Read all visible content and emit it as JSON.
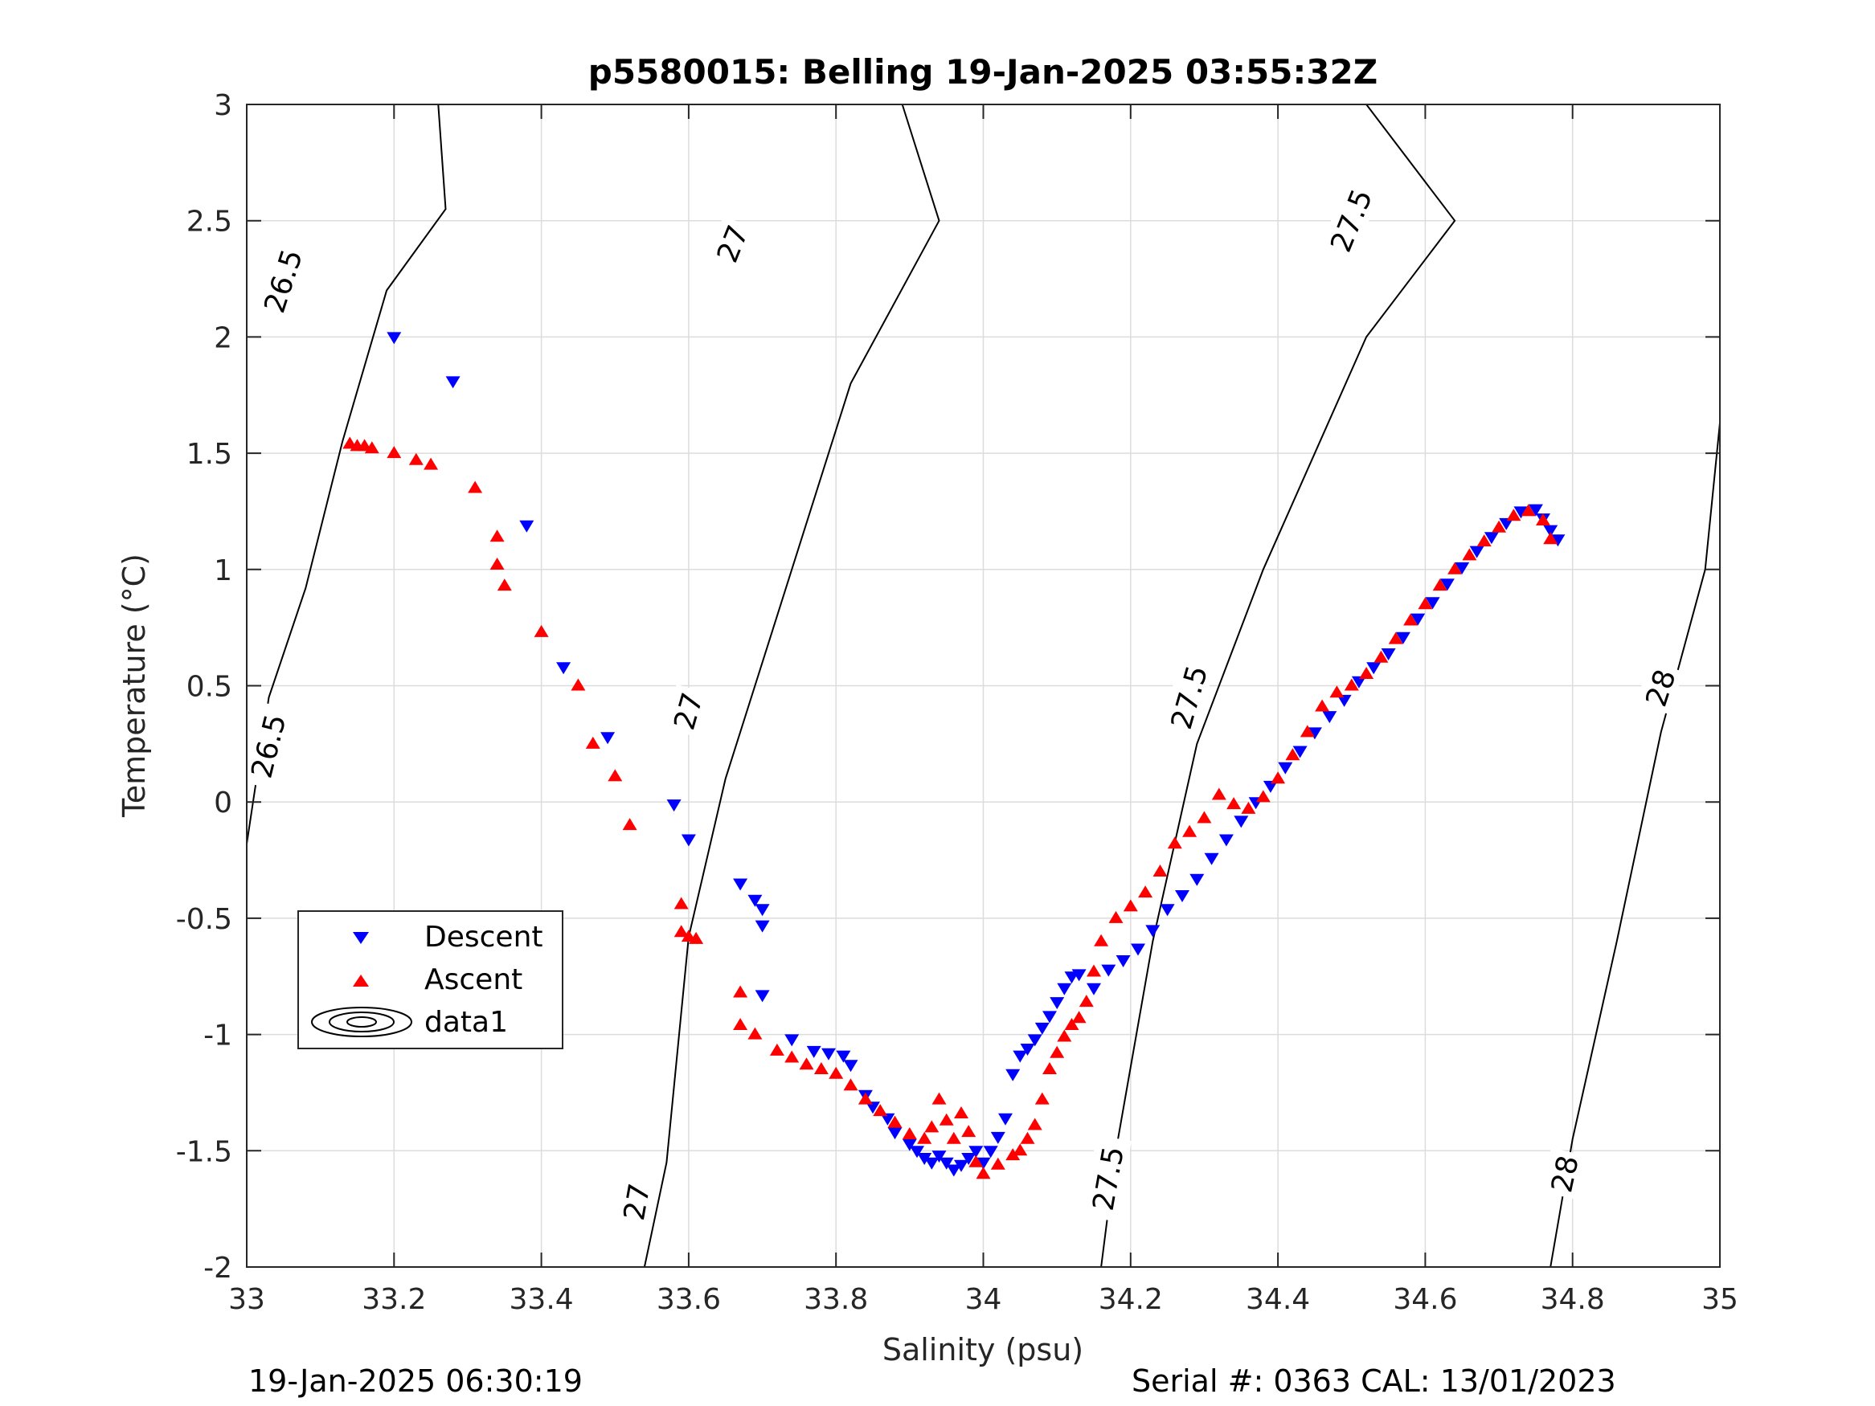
{
  "chart_data": {
    "type": "scatter",
    "title": "p5580015: Belling 19-Jan-2025 03:55:32Z",
    "xlabel": "Salinity (psu)",
    "ylabel": "Temperature (°C)",
    "xlim": [
      33,
      35
    ],
    "ylim": [
      -2,
      3
    ],
    "xticks": [
      "33",
      "33.2",
      "33.4",
      "33.6",
      "33.8",
      "34",
      "34.2",
      "34.4",
      "34.6",
      "34.8",
      "35"
    ],
    "yticks": [
      "3",
      "2.5",
      "2",
      "1.5",
      "1",
      "0.5",
      "0",
      "-0.5",
      "-1",
      "-1.5",
      "-2"
    ],
    "grid": true,
    "legend": {
      "placement": "lower-left",
      "entries": [
        "Descent",
        "Ascent",
        "data1"
      ]
    },
    "series": [
      {
        "name": "Descent",
        "marker": "triangle-down",
        "color": "#0000ff",
        "points": [
          [
            33.2,
            2.0
          ],
          [
            33.28,
            1.81
          ],
          [
            33.38,
            1.19
          ],
          [
            33.43,
            0.58
          ],
          [
            33.49,
            0.28
          ],
          [
            33.58,
            -0.01
          ],
          [
            33.6,
            -0.16
          ],
          [
            33.67,
            -0.35
          ],
          [
            33.69,
            -0.42
          ],
          [
            33.7,
            -0.46
          ],
          [
            33.7,
            -0.53
          ],
          [
            33.7,
            -0.83
          ],
          [
            33.74,
            -1.02
          ],
          [
            33.77,
            -1.07
          ],
          [
            33.79,
            -1.08
          ],
          [
            33.81,
            -1.09
          ],
          [
            33.82,
            -1.13
          ],
          [
            33.84,
            -1.26
          ],
          [
            33.85,
            -1.31
          ],
          [
            33.87,
            -1.36
          ],
          [
            33.88,
            -1.42
          ],
          [
            33.9,
            -1.47
          ],
          [
            33.91,
            -1.5
          ],
          [
            33.92,
            -1.53
          ],
          [
            33.93,
            -1.55
          ],
          [
            33.94,
            -1.52
          ],
          [
            33.95,
            -1.55
          ],
          [
            33.96,
            -1.58
          ],
          [
            33.97,
            -1.56
          ],
          [
            33.98,
            -1.53
          ],
          [
            33.99,
            -1.5
          ],
          [
            34.0,
            -1.55
          ],
          [
            34.01,
            -1.5
          ],
          [
            34.02,
            -1.44
          ],
          [
            34.03,
            -1.36
          ],
          [
            34.04,
            -1.17
          ],
          [
            34.05,
            -1.09
          ],
          [
            34.06,
            -1.06
          ],
          [
            34.07,
            -1.02
          ],
          [
            34.08,
            -0.97
          ],
          [
            34.09,
            -0.92
          ],
          [
            34.1,
            -0.86
          ],
          [
            34.11,
            -0.8
          ],
          [
            34.12,
            -0.75
          ],
          [
            34.13,
            -0.74
          ],
          [
            34.15,
            -0.8
          ],
          [
            34.17,
            -0.72
          ],
          [
            34.19,
            -0.68
          ],
          [
            34.21,
            -0.63
          ],
          [
            34.23,
            -0.55
          ],
          [
            34.25,
            -0.46
          ],
          [
            34.27,
            -0.4
          ],
          [
            34.29,
            -0.33
          ],
          [
            34.31,
            -0.24
          ],
          [
            34.33,
            -0.16
          ],
          [
            34.35,
            -0.08
          ],
          [
            34.37,
            0.0
          ],
          [
            34.39,
            0.07
          ],
          [
            34.41,
            0.15
          ],
          [
            34.43,
            0.22
          ],
          [
            34.45,
            0.3
          ],
          [
            34.47,
            0.37
          ],
          [
            34.49,
            0.44
          ],
          [
            34.51,
            0.52
          ],
          [
            34.53,
            0.58
          ],
          [
            34.55,
            0.64
          ],
          [
            34.57,
            0.71
          ],
          [
            34.59,
            0.79
          ],
          [
            34.61,
            0.86
          ],
          [
            34.63,
            0.94
          ],
          [
            34.65,
            1.01
          ],
          [
            34.67,
            1.08
          ],
          [
            34.69,
            1.14
          ],
          [
            34.71,
            1.2
          ],
          [
            34.73,
            1.25
          ],
          [
            34.75,
            1.26
          ],
          [
            34.76,
            1.22
          ],
          [
            34.77,
            1.17
          ],
          [
            34.78,
            1.13
          ]
        ]
      },
      {
        "name": "Ascent",
        "marker": "triangle-up",
        "color": "#ff0000",
        "points": [
          [
            33.14,
            1.54
          ],
          [
            33.15,
            1.53
          ],
          [
            33.16,
            1.53
          ],
          [
            33.17,
            1.52
          ],
          [
            33.2,
            1.5
          ],
          [
            33.23,
            1.47
          ],
          [
            33.25,
            1.45
          ],
          [
            33.31,
            1.35
          ],
          [
            33.34,
            1.14
          ],
          [
            33.34,
            1.02
          ],
          [
            33.35,
            0.93
          ],
          [
            33.4,
            0.73
          ],
          [
            33.45,
            0.5
          ],
          [
            33.47,
            0.25
          ],
          [
            33.5,
            0.11
          ],
          [
            33.52,
            -0.1
          ],
          [
            33.59,
            -0.44
          ],
          [
            33.59,
            -0.56
          ],
          [
            33.6,
            -0.58
          ],
          [
            33.61,
            -0.59
          ],
          [
            33.67,
            -0.82
          ],
          [
            33.67,
            -0.96
          ],
          [
            33.69,
            -1.0
          ],
          [
            33.72,
            -1.07
          ],
          [
            33.74,
            -1.1
          ],
          [
            33.76,
            -1.13
          ],
          [
            33.78,
            -1.15
          ],
          [
            33.8,
            -1.17
          ],
          [
            33.82,
            -1.22
          ],
          [
            33.84,
            -1.28
          ],
          [
            33.86,
            -1.33
          ],
          [
            33.88,
            -1.38
          ],
          [
            33.9,
            -1.43
          ],
          [
            33.92,
            -1.45
          ],
          [
            33.93,
            -1.4
          ],
          [
            33.94,
            -1.28
          ],
          [
            33.95,
            -1.37
          ],
          [
            33.96,
            -1.45
          ],
          [
            33.97,
            -1.34
          ],
          [
            33.98,
            -1.42
          ],
          [
            33.99,
            -1.55
          ],
          [
            34.0,
            -1.6
          ],
          [
            34.02,
            -1.56
          ],
          [
            34.04,
            -1.52
          ],
          [
            34.05,
            -1.5
          ],
          [
            34.06,
            -1.45
          ],
          [
            34.07,
            -1.39
          ],
          [
            34.08,
            -1.28
          ],
          [
            34.09,
            -1.15
          ],
          [
            34.1,
            -1.08
          ],
          [
            34.11,
            -1.01
          ],
          [
            34.12,
            -0.96
          ],
          [
            34.13,
            -0.93
          ],
          [
            34.14,
            -0.86
          ],
          [
            34.15,
            -0.73
          ],
          [
            34.16,
            -0.6
          ],
          [
            34.18,
            -0.5
          ],
          [
            34.2,
            -0.45
          ],
          [
            34.22,
            -0.39
          ],
          [
            34.24,
            -0.3
          ],
          [
            34.26,
            -0.18
          ],
          [
            34.28,
            -0.13
          ],
          [
            34.3,
            -0.07
          ],
          [
            34.32,
            0.03
          ],
          [
            34.34,
            -0.01
          ],
          [
            34.36,
            -0.03
          ],
          [
            34.38,
            0.02
          ],
          [
            34.4,
            0.1
          ],
          [
            34.42,
            0.2
          ],
          [
            34.44,
            0.3
          ],
          [
            34.46,
            0.41
          ],
          [
            34.48,
            0.47
          ],
          [
            34.5,
            0.5
          ],
          [
            34.52,
            0.55
          ],
          [
            34.54,
            0.62
          ],
          [
            34.56,
            0.7
          ],
          [
            34.58,
            0.78
          ],
          [
            34.6,
            0.85
          ],
          [
            34.62,
            0.93
          ],
          [
            34.64,
            1.0
          ],
          [
            34.66,
            1.06
          ],
          [
            34.68,
            1.12
          ],
          [
            34.7,
            1.18
          ],
          [
            34.72,
            1.23
          ],
          [
            34.74,
            1.25
          ],
          [
            34.76,
            1.21
          ],
          [
            34.77,
            1.13
          ]
        ]
      }
    ],
    "contours": [
      {
        "label": "26.5",
        "points": [
          [
            33.0,
            -0.18
          ],
          [
            33.03,
            0.45
          ],
          [
            33.08,
            0.92
          ],
          [
            33.13,
            1.55
          ],
          [
            33.19,
            2.2
          ],
          [
            33.27,
            2.55
          ],
          [
            33.26,
            3.0
          ]
        ]
      },
      {
        "label": "27",
        "points": [
          [
            33.54,
            -2.0
          ],
          [
            33.57,
            -1.55
          ],
          [
            33.6,
            -0.58
          ],
          [
            33.65,
            0.1
          ],
          [
            33.72,
            0.8
          ],
          [
            33.82,
            1.8
          ],
          [
            33.94,
            2.5
          ],
          [
            33.89,
            3.0
          ]
        ]
      },
      {
        "label": "27.5",
        "points": [
          [
            34.16,
            -2.0
          ],
          [
            34.18,
            -1.5
          ],
          [
            34.23,
            -0.6
          ],
          [
            34.29,
            0.25
          ],
          [
            34.38,
            1.0
          ],
          [
            34.52,
            2.0
          ],
          [
            34.64,
            2.5
          ],
          [
            34.52,
            3.0
          ]
        ]
      },
      {
        "label": "28",
        "points": [
          [
            34.77,
            -2.0
          ],
          [
            34.8,
            -1.45
          ],
          [
            34.86,
            -0.6
          ],
          [
            34.92,
            0.3
          ],
          [
            34.98,
            1.0
          ],
          [
            35.0,
            1.63
          ]
        ]
      }
    ],
    "contour_labels": [
      {
        "label": "26.5",
        "x": 33.05,
        "y": 2.24,
        "angle": -72
      },
      {
        "label": "26.5",
        "x": 33.03,
        "y": 0.24,
        "angle": -76
      },
      {
        "label": "27",
        "x": 33.66,
        "y": 2.4,
        "angle": -68
      },
      {
        "label": "27",
        "x": 33.6,
        "y": 0.39,
        "angle": -74
      },
      {
        "label": "27",
        "x": 33.53,
        "y": -1.72,
        "angle": -80
      },
      {
        "label": "27.5",
        "x": 34.5,
        "y": 2.5,
        "angle": -68
      },
      {
        "label": "27.5",
        "x": 34.28,
        "y": 0.45,
        "angle": -74
      },
      {
        "label": "27.5",
        "x": 34.17,
        "y": -1.62,
        "angle": -80
      },
      {
        "label": "28",
        "x": 34.92,
        "y": 0.49,
        "angle": -72
      },
      {
        "label": "28",
        "x": 34.79,
        "y": -1.6,
        "angle": -78
      }
    ]
  },
  "footer": {
    "timestamp": "19-Jan-2025 06:30:19",
    "serial": "Serial #: 0363  CAL: 13/01/2023"
  }
}
